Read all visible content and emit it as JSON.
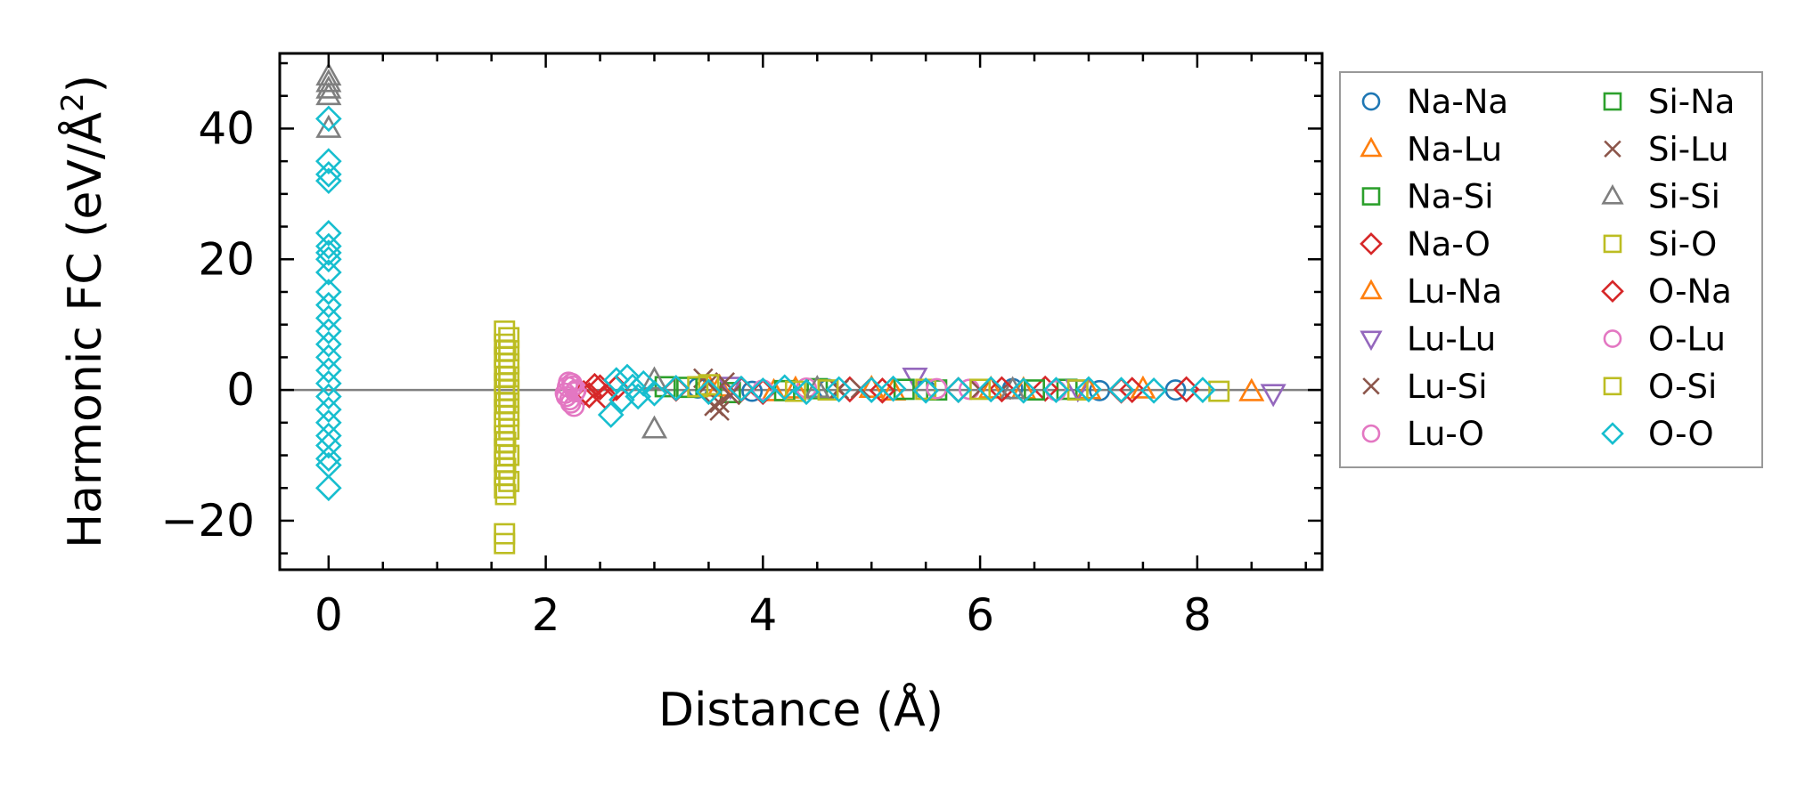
{
  "chart_data": {
    "type": "scatter",
    "title": "",
    "xlabel": "Distance (Å)",
    "ylabel_prefix": "Harmonic FC (eV/Å",
    "ylabel_sup": "2",
    "ylabel_suffix": ")",
    "xlim": [
      -0.45,
      9.15
    ],
    "ylim": [
      -27.5,
      51.5
    ],
    "xticks": [
      0,
      2,
      4,
      6,
      8
    ],
    "yticks": [
      -20,
      0,
      20,
      40
    ],
    "xtick_labels": [
      "0",
      "2",
      "4",
      "6",
      "8"
    ],
    "ytick_labels": [
      "−20",
      "0",
      "20",
      "40"
    ],
    "reference_line_y": 0,
    "reference_line_color": "#808080",
    "legend": {
      "placement": "outside-right",
      "columns": 2
    },
    "series": [
      {
        "name": "Na-Na",
        "marker": "circle",
        "color": "#1f77b4",
        "points": [
          [
            3.4,
            0.3
          ],
          [
            3.9,
            -0.2
          ],
          [
            4.6,
            0.1
          ],
          [
            5.5,
            0
          ],
          [
            6.3,
            0.2
          ],
          [
            7.1,
            -0.1
          ],
          [
            7.8,
            0
          ]
        ]
      },
      {
        "name": "Na-Lu",
        "marker": "triangle-up",
        "color": "#ff7f0e",
        "points": [
          [
            3.6,
            0.4
          ],
          [
            4.1,
            -0.3
          ],
          [
            5.0,
            0.2
          ],
          [
            6.1,
            0.1
          ],
          [
            7.0,
            0
          ],
          [
            8.5,
            -0.3
          ]
        ]
      },
      {
        "name": "Na-Si",
        "marker": "square",
        "color": "#2ca02c",
        "points": [
          [
            3.1,
            0.5
          ],
          [
            3.7,
            -0.4
          ],
          [
            4.5,
            0.2
          ],
          [
            5.6,
            0
          ],
          [
            6.8,
            0.1
          ]
        ]
      },
      {
        "name": "Na-O",
        "marker": "diamond",
        "color": "#d62728",
        "points": [
          [
            2.35,
            -0.5
          ],
          [
            2.45,
            0.6
          ],
          [
            2.55,
            -1.0
          ],
          [
            2.65,
            0.3
          ],
          [
            3.2,
            0.2
          ],
          [
            4.0,
            -0.3
          ],
          [
            4.8,
            0.1
          ],
          [
            5.8,
            0
          ],
          [
            6.6,
            0.2
          ],
          [
            7.3,
            -0.1
          ],
          [
            7.9,
            0.1
          ]
        ]
      },
      {
        "name": "Lu-Na",
        "marker": "triangle-up",
        "color": "#ff7f0e",
        "points": [
          [
            3.5,
            0.5
          ],
          [
            4.3,
            0.1
          ],
          [
            5.2,
            -0.2
          ],
          [
            6.4,
            0
          ],
          [
            7.5,
            0.1
          ]
        ]
      },
      {
        "name": "Lu-Lu",
        "marker": "triangle-down",
        "color": "#9467bd",
        "points": [
          [
            3.7,
            0.6
          ],
          [
            5.4,
            2.0
          ],
          [
            6.9,
            0.2
          ],
          [
            8.7,
            -0.5
          ]
        ]
      },
      {
        "name": "Lu-Si",
        "marker": "x",
        "color": "#8c564b",
        "points": [
          [
            3.45,
            1.8
          ],
          [
            3.55,
            -2.5
          ],
          [
            3.6,
            -3.2
          ],
          [
            3.65,
            1.2
          ],
          [
            3.7,
            -0.8
          ],
          [
            4.9,
            0.2
          ],
          [
            6.2,
            0
          ]
        ]
      },
      {
        "name": "Lu-O",
        "marker": "circle",
        "color": "#e377c2",
        "points": [
          [
            2.18,
            -0.5
          ],
          [
            2.2,
            0.5
          ],
          [
            2.22,
            -1.5
          ],
          [
            2.24,
            1.0
          ],
          [
            2.26,
            -2.5
          ],
          [
            2.28,
            0
          ],
          [
            4.4,
            0.3
          ],
          [
            5.9,
            0.1
          ],
          [
            6.7,
            -0.1
          ]
        ]
      },
      {
        "name": "Si-Na",
        "marker": "square",
        "color": "#2ca02c",
        "points": [
          [
            3.3,
            0.4
          ],
          [
            4.2,
            -0.1
          ],
          [
            5.3,
            0.1
          ],
          [
            6.5,
            0
          ]
        ]
      },
      {
        "name": "Si-Lu",
        "marker": "x",
        "color": "#8c564b",
        "points": [
          [
            3.5,
            1.0
          ],
          [
            3.6,
            -2.0
          ],
          [
            4.7,
            0.1
          ],
          [
            6.0,
            0
          ]
        ]
      },
      {
        "name": "Si-Si",
        "marker": "triangle-up",
        "color": "#7f7f7f",
        "points": [
          [
            0,
            45
          ],
          [
            0,
            46
          ],
          [
            0,
            47
          ],
          [
            0,
            48
          ],
          [
            0,
            40
          ],
          [
            3.0,
            -6.0
          ],
          [
            3.0,
            1.5
          ],
          [
            4.5,
            0.2
          ],
          [
            6.3,
            0
          ]
        ]
      },
      {
        "name": "Si-O",
        "marker": "square",
        "color": "#bcbd22",
        "points": [
          [
            1.62,
            9
          ],
          [
            1.62,
            7
          ],
          [
            1.62,
            5
          ],
          [
            1.62,
            3
          ],
          [
            1.62,
            1
          ],
          [
            1.62,
            -1
          ],
          [
            1.62,
            -3
          ],
          [
            1.62,
            -5
          ],
          [
            1.62,
            -7
          ],
          [
            1.62,
            -9
          ],
          [
            1.62,
            -11
          ],
          [
            1.62,
            -13
          ],
          [
            1.62,
            -15
          ],
          [
            1.62,
            -22
          ],
          [
            1.62,
            -23.5
          ],
          [
            1.66,
            8
          ],
          [
            1.66,
            6
          ],
          [
            1.66,
            4
          ],
          [
            1.66,
            2
          ],
          [
            1.66,
            0
          ],
          [
            1.66,
            -2
          ],
          [
            1.66,
            -4
          ],
          [
            1.66,
            -6
          ],
          [
            1.66,
            -10
          ],
          [
            1.66,
            -14
          ],
          [
            3.4,
            0.5
          ],
          [
            4.3,
            -0.2
          ],
          [
            5.5,
            0.1
          ],
          [
            6.9,
            0
          ],
          [
            8.2,
            -0.2
          ]
        ]
      },
      {
        "name": "O-Na",
        "marker": "diamond",
        "color": "#d62728",
        "points": [
          [
            2.4,
            -0.8
          ],
          [
            2.5,
            0.4
          ],
          [
            3.8,
            0.1
          ],
          [
            5.1,
            -0.1
          ],
          [
            6.2,
            0.1
          ],
          [
            7.4,
            0
          ]
        ]
      },
      {
        "name": "O-Lu",
        "marker": "circle",
        "color": "#e377c2",
        "points": [
          [
            2.19,
            -1.0
          ],
          [
            2.21,
            1.2
          ],
          [
            2.23,
            -2.0
          ],
          [
            2.25,
            0.6
          ],
          [
            2.27,
            -0.3
          ],
          [
            4.0,
            0
          ],
          [
            5.6,
            0.2
          ]
        ]
      },
      {
        "name": "O-Si",
        "marker": "square",
        "color": "#bcbd22",
        "points": [
          [
            1.63,
            6
          ],
          [
            1.63,
            2
          ],
          [
            1.63,
            -2
          ],
          [
            1.63,
            -8
          ],
          [
            1.63,
            -12
          ],
          [
            1.63,
            -16
          ],
          [
            3.5,
            0.8
          ],
          [
            4.6,
            0
          ],
          [
            6.0,
            0.1
          ]
        ]
      },
      {
        "name": "O-O",
        "marker": "diamond",
        "color": "#17becf",
        "points": [
          [
            0,
            41.5
          ],
          [
            0,
            35
          ],
          [
            0,
            33
          ],
          [
            0,
            32
          ],
          [
            0,
            24
          ],
          [
            0,
            22
          ],
          [
            0,
            21
          ],
          [
            0,
            20
          ],
          [
            0,
            18
          ],
          [
            0,
            15
          ],
          [
            0,
            13
          ],
          [
            0,
            11
          ],
          [
            0,
            9
          ],
          [
            0,
            7
          ],
          [
            0,
            5
          ],
          [
            0,
            3
          ],
          [
            0,
            1
          ],
          [
            0,
            -1
          ],
          [
            0,
            -3
          ],
          [
            0,
            -5
          ],
          [
            0,
            -7
          ],
          [
            0,
            -8.5
          ],
          [
            0,
            -10.5
          ],
          [
            0,
            -11.5
          ],
          [
            0,
            -15
          ],
          [
            2.6,
            -3.8
          ],
          [
            2.65,
            1.5
          ],
          [
            2.7,
            -1.5
          ],
          [
            2.75,
            2.0
          ],
          [
            2.8,
            0.5
          ],
          [
            2.85,
            -1.0
          ],
          [
            2.9,
            1.0
          ],
          [
            3.0,
            -0.5
          ],
          [
            3.2,
            0.3
          ],
          [
            3.5,
            -0.3
          ],
          [
            3.8,
            0.2
          ],
          [
            4.0,
            -0.1
          ],
          [
            4.2,
            0.4
          ],
          [
            4.4,
            -0.3
          ],
          [
            4.7,
            0.1
          ],
          [
            5.0,
            0
          ],
          [
            5.2,
            0.2
          ],
          [
            5.5,
            -0.1
          ],
          [
            5.8,
            0
          ],
          [
            6.1,
            0.1
          ],
          [
            6.4,
            -0.1
          ],
          [
            6.7,
            0
          ],
          [
            7.0,
            0.1
          ],
          [
            7.3,
            0
          ],
          [
            7.6,
            -0.1
          ],
          [
            8.05,
            0
          ]
        ]
      }
    ]
  }
}
